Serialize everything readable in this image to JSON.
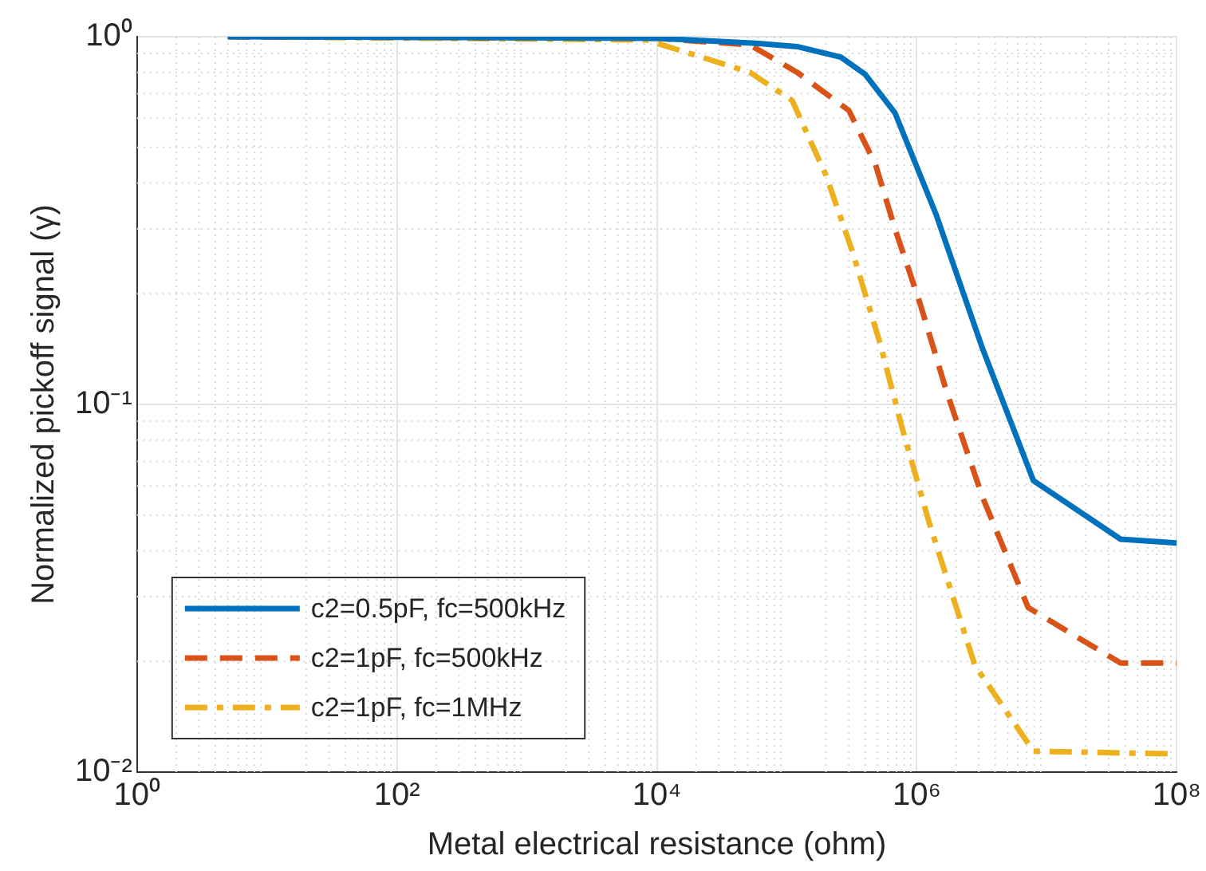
{
  "chart_data": {
    "type": "line",
    "xlabel": "Metal electrical resistance (ohm)",
    "ylabel": "Normalized pickoff signal (γ)",
    "log": "xy",
    "grid": true,
    "legend": "bottom left",
    "marker": "none",
    "xlim": [
      1,
      100000000
    ],
    "ylim": [
      0.01,
      1
    ],
    "xticks": [
      {
        "value": 1,
        "label": "10⁰"
      },
      {
        "value": 100,
        "label": "10²"
      },
      {
        "value": 10000,
        "label": "10⁴"
      },
      {
        "value": 1000000,
        "label": "10⁶"
      },
      {
        "value": 100000000,
        "label": "10⁸"
      }
    ],
    "yticks": [
      {
        "value": 0.01,
        "label": "10⁻²"
      },
      {
        "value": 0.1,
        "label": "10⁻¹"
      },
      {
        "value": 1,
        "label": "10⁰"
      }
    ],
    "series": [
      {
        "name": "c2=0.5pF, fc=500kHz",
        "color": "#0072bd",
        "line_style": "solid",
        "x": [
          5,
          10000,
          58000,
          120000,
          260000,
          400000,
          680000,
          1400000,
          3200000,
          7900000,
          37000000,
          100000000
        ],
        "values": [
          1,
          0.99,
          0.96,
          0.94,
          0.88,
          0.79,
          0.62,
          0.33,
          0.142,
          0.062,
          0.043,
          0.042
        ]
      },
      {
        "name": "c2=1pF, fc=500kHz",
        "color": "#d95319",
        "line_style": "dashed",
        "x": [
          5,
          10000,
          52000,
          120000,
          300000,
          480000,
          680000,
          1050000,
          1700000,
          3200000,
          7200000,
          13000000,
          37000000,
          100000000
        ],
        "values": [
          1,
          0.99,
          0.95,
          0.8,
          0.63,
          0.45,
          0.3,
          0.19,
          0.108,
          0.056,
          0.028,
          0.0247,
          0.0198,
          0.0198
        ]
      },
      {
        "name": "c2=1pF, fc=1MHz",
        "color": "#edb120",
        "line_style": "dashdot",
        "x": [
          5,
          8300,
          52000,
          110000,
          200000,
          320000,
          520000,
          780000,
          1260000,
          2800000,
          7900000,
          100000000
        ],
        "values": [
          1,
          0.98,
          0.8,
          0.67,
          0.42,
          0.26,
          0.147,
          0.085,
          0.047,
          0.0195,
          0.0114,
          0.0112
        ]
      }
    ]
  }
}
